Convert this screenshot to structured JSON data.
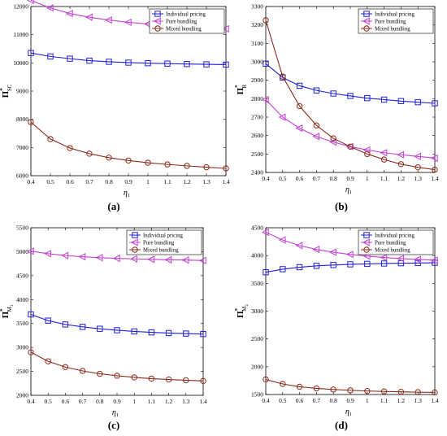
{
  "chart_data": [
    {
      "type": "line",
      "panel_label": "(a)",
      "xlabel": "η",
      "xlabel_sub": "1",
      "ylabel": "Π",
      "ylabel_sup": "*",
      "ylabel_sub": "SC",
      "x": [
        0.4,
        0.5,
        0.6,
        0.7,
        0.8,
        0.9,
        1.0,
        1.1,
        1.2,
        1.3,
        1.4
      ],
      "xticks": [
        "0.4",
        "0.5",
        "0.6",
        "0.7",
        "0.8",
        "0.9",
        "1",
        "1.1",
        "1.2",
        "1.3",
        "1.4"
      ],
      "xlim": [
        0.4,
        1.4
      ],
      "ylim": [
        6000,
        12000
      ],
      "yticks": [
        "6000",
        "7000",
        "8000",
        "9000",
        "10000",
        "11000",
        "12000"
      ],
      "ytick_values": [
        6000,
        7000,
        8000,
        9000,
        10000,
        11000,
        12000
      ],
      "legend_position": "top-right",
      "series": [
        {
          "name": "Individual pricing",
          "color": "#1f1fd6",
          "marker": "square",
          "values": [
            10350,
            10230,
            10150,
            10080,
            10040,
            10010,
            9990,
            9975,
            9960,
            9950,
            9940
          ]
        },
        {
          "name": "Pure bundling",
          "color": "#c13fd1",
          "marker": "triangle-left",
          "values": [
            12220,
            11950,
            11750,
            11620,
            11520,
            11440,
            11380,
            11330,
            11290,
            11250,
            11210
          ]
        },
        {
          "name": "Mixed bundling",
          "color": "#8b2a1a",
          "marker": "circle",
          "values": [
            7900,
            7300,
            6980,
            6780,
            6640,
            6540,
            6460,
            6400,
            6350,
            6300,
            6260
          ]
        }
      ]
    },
    {
      "type": "line",
      "panel_label": "(b)",
      "xlabel": "η",
      "xlabel_sub": "1",
      "ylabel": "Π",
      "ylabel_sup": "*",
      "ylabel_sub": "R",
      "x": [
        0.4,
        0.5,
        0.6,
        0.7,
        0.8,
        0.9,
        1.0,
        1.1,
        1.2,
        1.3,
        1.4
      ],
      "xticks": [
        "0.4",
        "0.5",
        "0.6",
        "0.7",
        "0.8",
        "0.9",
        "1",
        "1.1",
        "1.2",
        "1.3",
        "1.4"
      ],
      "xlim": [
        0.4,
        1.4
      ],
      "ylim": [
        2400,
        3300
      ],
      "yticks": [
        "2400",
        "2500",
        "2600",
        "2700",
        "2800",
        "2900",
        "3000",
        "3100",
        "3200",
        "3300"
      ],
      "ytick_values": [
        2400,
        2500,
        2600,
        2700,
        2800,
        2900,
        3000,
        3100,
        3200,
        3300
      ],
      "legend_position": "top-right",
      "series": [
        {
          "name": "Individual pricing",
          "color": "#1f1fd6",
          "marker": "square",
          "values": [
            2990,
            2915,
            2870,
            2845,
            2828,
            2815,
            2803,
            2795,
            2787,
            2781,
            2775
          ]
        },
        {
          "name": "Pure bundling",
          "color": "#c13fd1",
          "marker": "triangle-left",
          "values": [
            2795,
            2700,
            2640,
            2595,
            2565,
            2540,
            2522,
            2507,
            2496,
            2487,
            2478
          ]
        },
        {
          "name": "Mixed bundling",
          "color": "#8b2a1a",
          "marker": "circle",
          "values": [
            3225,
            2920,
            2760,
            2655,
            2585,
            2540,
            2500,
            2470,
            2445,
            2428,
            2415
          ]
        }
      ]
    },
    {
      "type": "line",
      "panel_label": "(c)",
      "xlabel": "η",
      "xlabel_sub": "1",
      "ylabel": "Π",
      "ylabel_sup": "*",
      "ylabel_sub": "M",
      "ylabel_subsub": "1",
      "x": [
        0.4,
        0.5,
        0.6,
        0.7,
        0.8,
        0.9,
        1.0,
        1.1,
        1.2,
        1.3,
        1.4
      ],
      "xticks": [
        "0.4",
        "0.5",
        "0.6",
        "0.7",
        "0.8",
        "0.9",
        "1",
        "1.1",
        "1.2",
        "1.3",
        "1.4"
      ],
      "xlim": [
        0.4,
        1.4
      ],
      "ylim": [
        2000,
        5500
      ],
      "yticks": [
        "2000",
        "2500",
        "3000",
        "3500",
        "4000",
        "4500",
        "5000",
        "5500"
      ],
      "ytick_values": [
        2000,
        2500,
        3000,
        3500,
        4000,
        4500,
        5000,
        5500
      ],
      "legend_position": "top-right",
      "series": [
        {
          "name": "Individual pricing",
          "color": "#1f1fd6",
          "marker": "square",
          "values": [
            3690,
            3560,
            3480,
            3430,
            3390,
            3360,
            3335,
            3315,
            3300,
            3290,
            3280
          ]
        },
        {
          "name": "Pure bundling",
          "color": "#c13fd1",
          "marker": "triangle-left",
          "values": [
            5010,
            4960,
            4920,
            4895,
            4875,
            4860,
            4850,
            4840,
            4830,
            4825,
            4815
          ]
        },
        {
          "name": "Mixed bundling",
          "color": "#8b2a1a",
          "marker": "circle",
          "values": [
            2900,
            2710,
            2590,
            2510,
            2450,
            2410,
            2375,
            2350,
            2330,
            2315,
            2300
          ]
        }
      ]
    },
    {
      "type": "line",
      "panel_label": "(d)",
      "xlabel": "η",
      "xlabel_sub": "1",
      "ylabel": "Π",
      "ylabel_sup": "*",
      "ylabel_sub": "M",
      "ylabel_subsub": "2",
      "x": [
        0.4,
        0.5,
        0.6,
        0.7,
        0.8,
        0.9,
        1.0,
        1.1,
        1.2,
        1.3,
        1.4
      ],
      "xticks": [
        "0.4",
        "0.5",
        "0.6",
        "0.7",
        "0.8",
        "0.9",
        "1",
        "1.1",
        "1.2",
        "1.3",
        "1.4"
      ],
      "xlim": [
        0.4,
        1.4
      ],
      "ylim": [
        1500,
        4500
      ],
      "yticks": [
        "1500",
        "2000",
        "2500",
        "3000",
        "3500",
        "4000",
        "4500"
      ],
      "ytick_values": [
        1500,
        2000,
        2500,
        3000,
        3500,
        4000,
        4500
      ],
      "legend_position": "top-right",
      "series": [
        {
          "name": "Individual pricing",
          "color": "#1f1fd6",
          "marker": "square",
          "values": [
            3700,
            3755,
            3790,
            3815,
            3830,
            3842,
            3850,
            3857,
            3862,
            3866,
            3870
          ]
        },
        {
          "name": "Pure bundling",
          "color": "#c13fd1",
          "marker": "triangle-left",
          "values": [
            4420,
            4280,
            4180,
            4110,
            4060,
            4020,
            3990,
            3965,
            3945,
            3930,
            3915
          ]
        },
        {
          "name": "Mixed bundling",
          "color": "#8b2a1a",
          "marker": "circle",
          "values": [
            1770,
            1690,
            1640,
            1610,
            1590,
            1575,
            1563,
            1555,
            1548,
            1542,
            1537
          ]
        }
      ]
    }
  ]
}
